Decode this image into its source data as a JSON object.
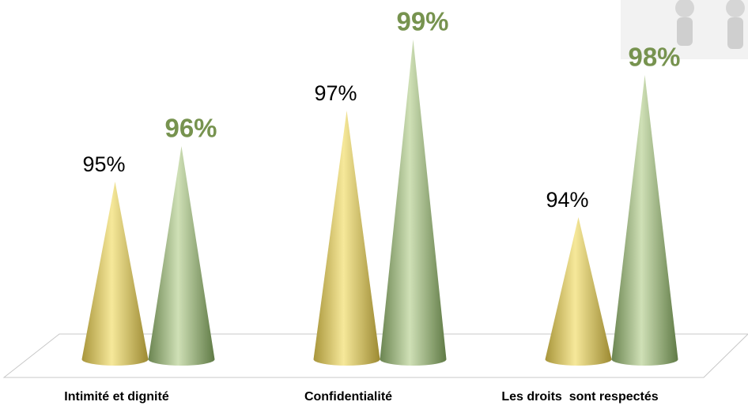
{
  "chart_data": {
    "type": "cone",
    "categories": [
      "Intimité et dignité",
      "Confidentialité",
      "Les droits  sont respectés"
    ],
    "series": [
      {
        "color": "#d8c45c",
        "values": [
          95,
          97,
          94
        ],
        "value_labels": [
          "95%",
          "97%",
          "94%"
        ]
      },
      {
        "color": "#93ad72",
        "values": [
          96,
          99,
          98
        ],
        "value_labels": [
          "96%",
          "99%",
          "98%"
        ]
      }
    ],
    "ylim": [
      90,
      100
    ]
  }
}
